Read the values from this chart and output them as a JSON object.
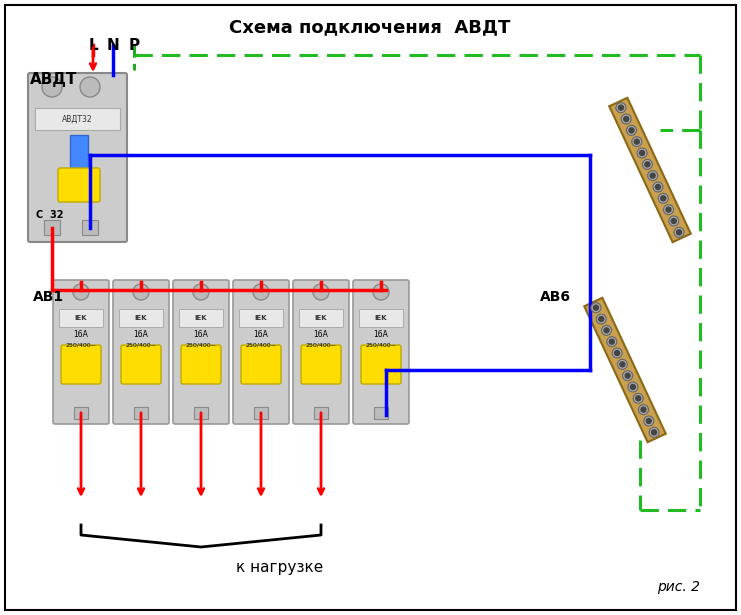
{
  "title": "Схема подключения  АВДТ",
  "label_avdt": "АВДТ",
  "label_av1": "АВ1",
  "label_av6": "АВ6",
  "label_load": "к нагрузке",
  "label_fig": "рис. 2",
  "label_L": "L",
  "label_N": "N",
  "label_P": "Р",
  "bg_color": "#ffffff",
  "red_wire": "#ff0000",
  "blue_wire": "#0000ff",
  "green_yellow_wire": "#22aa22",
  "green_yellow_dash": "#dddd00",
  "bus_color": "#c8a050",
  "bus_screw_color": "#aaaaaa",
  "breaker_body": "#d8d8d8",
  "breaker_yellow": "#ffdd00",
  "breaker_blue": "#4488ff",
  "num_small_breakers": 6,
  "figsize": [
    7.41,
    6.15
  ],
  "dpi": 100
}
